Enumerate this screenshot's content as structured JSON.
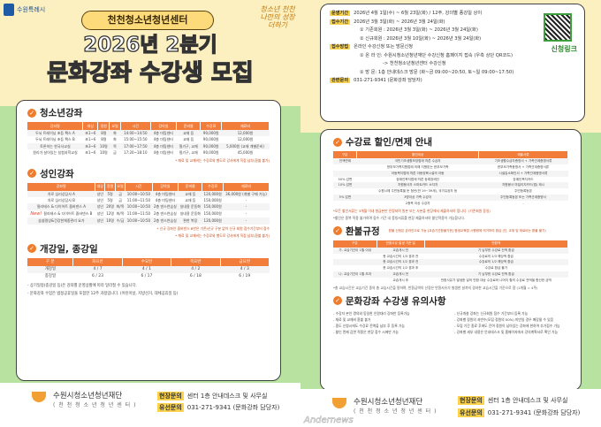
{
  "header": {
    "city_logo": "수원특례시",
    "center_badge": "천천청소년청년센터",
    "title_line1": "2026년 2분기",
    "title_line2": "문화강좌 수강생 모집",
    "slogan": "청소년 천천 나만의 성장 더하기"
  },
  "youth": {
    "title": "청소년강좌",
    "columns": [
      "강좌명",
      "대상",
      "정원",
      "요일",
      "시간",
      "강의실",
      "준비물",
      "수강료",
      "재료비"
    ],
    "rows": [
      [
        "두뇌 트레이닝 초등 팩스 A",
        "초1~6",
        "8명",
        "화",
        "14:00~14:50",
        "4층 미팅센터",
        "교재 등",
        "90,000원",
        "12,000원"
      ],
      [
        "두뇌 트레이닝 초등 팩스 B",
        "초1~6",
        "8명",
        "화",
        "15:00~15:50",
        "4층 미팅센터",
        "교재 등",
        "90,000원",
        "12,000원"
      ],
      [
        "토론하는 한국사교실",
        "초3~6",
        "10명",
        "목",
        "17:00~17:50",
        "4층 미팅센터",
        "필기구, 교재",
        "90,000원",
        "5,000원 (교재 개별준비)"
      ],
      [
        "원리가 살아있는 실험과학교실",
        "초1~6",
        "10명",
        "금",
        "17:20~18:10",
        "4층 미팅센터",
        "필기구, 교재",
        "90,000원",
        "45,000원"
      ]
    ],
    "note": "* 재료 및 교재비는 수강료와 별도로 강사에게 직접 납부(환불 불가)"
  },
  "adult": {
    "title": "성인강좌",
    "columns": [
      "강좌명",
      "대상",
      "정원",
      "요일",
      "시간",
      "강의실",
      "준비물",
      "수강료",
      "재료비"
    ],
    "rows": [
      [
        "차로 심리상담사 A",
        "성인",
        "5명",
        "금",
        "10:00~10:50",
        "4층 미팅센터",
        "교재 등",
        "120,000원",
        "36,000원 (개별 구매 가능)"
      ],
      [
        "차로 심리상담사 B",
        "성인",
        "5명",
        "금",
        "11:00~11:50",
        "4층 미팅센터",
        "교재 등",
        "150,000원",
        "-"
      ],
      [
        "필라테스 & 다이어트 줌바댄스 A",
        "성인",
        "20명",
        "화/목",
        "10:00~10:50",
        "2층 댄스연습실",
        "실내용 운동화",
        "150,000원",
        "-"
      ],
      [
        "필라테스 & 다이어트 줌바댄스 B",
        "성인",
        "12명",
        "화/목",
        "11:00~11:50",
        "2층 댄스연습실",
        "실내용 운동화",
        "150,000원",
        "-"
      ],
      [
        "숨쉼명상&건강한체중관리 요가",
        "성인",
        "10명",
        "수/금",
        "10:00~10:50",
        "2층 댄스연습실",
        "편한 복장",
        "120,000원",
        "-"
      ]
    ],
    "new_badge": "New!",
    "notes": [
      "* 신규 강좌인 줌바댄스 B반은 기존/신규 구분 없이 신규 회원 접수기간부터 접수",
      "* 재료 및 교재비는 수강료와 별도로 강사에게 직접 납부(환불 불가)"
    ]
  },
  "schedule": {
    "title": "개강일, 종강일",
    "columns": [
      "구 분",
      "화요반",
      "수요반",
      "목요반",
      "금요반"
    ],
    "rows": [
      [
        "개강일",
        "4 / 7",
        "4 / 1",
        "4 / 2",
        "4 / 3"
      ],
      [
        "종강일",
        "6 / 23",
        "6 / 17",
        "6 / 18",
        "6 / 19"
      ]
    ],
    "bullets": [
      "- 상기일정(종강일 등)은 강좌별 운영상황에 따라 달라질 수 있습니다.",
      "- 문화강좌 수업은 법정공휴일을 포함한 12주 과정입니다. (어린이날, 지방선거, 대체공휴일 등)"
    ]
  },
  "footer": {
    "org": "수원시청소년청년재단",
    "org_sub": "( 천 천 청 소 년 청 년 센 터 )",
    "visit_label": "현장문의",
    "visit": "센터 1층 안내데스크 및 사무실",
    "phone_label": "유선문의",
    "phone": "031-271-9341 (문화강좌 담당자)",
    "watermark": "Andernews"
  },
  "info": {
    "period_label": "운영기간",
    "period": "2026년 4월 1일(수) ~ 6월 23일(화) / 12주, 강의별 종강일 상이",
    "reg_label": "접수기간",
    "reg": "2026년 3월 3일(화) ~ 2026년 3월 24일(화)",
    "reg1": "① 기존회원 : 2026년 3월 3일(화) ~ 2026년 3월 24일(화)",
    "reg2": "② 신규회원 : 2026년 3월 10일(화) ~ 2026년 3월 24일(화)",
    "method_label": "접수방법",
    "method": "온라인 수강신청 또는 방문신청",
    "m1": "① 온 라 인: 수원시청소년청년재단 수강신청 홈페이지 접속 (우측 상단 QR코드)",
    "m1b": "-> 천천청소년청년센터 수강신청",
    "m2": "② 방     문: 1층 안내데스크 방문 (화~금 09:00~20:50, 토~일 09:00~17:50)",
    "contact_label": "관련문의",
    "contact": "031-271-9341 (문화강좌 담당자)",
    "qr_label": "신청링크"
  },
  "discount": {
    "title": "수강료 할인/면제 안내",
    "columns": [
      "구분",
      "할인대상",
      "제출서류"
    ],
    "rows": [
      [
        "전액면제",
        "국민기초생활보장법에 따른 수급자",
        "기초생활수급자증명서 + 가족관계증명서류"
      ],
      [
        "",
        "한부모가족지원법에 의해 지원받는 한부모가족",
        "한부모가족증명서 + 가족관계증명서류"
      ],
      [
        "",
        "아동복지법에 따른 아동양육시설의 아동",
        "시설입소확인서 + 가족관계증명서류"
      ],
      [
        "50% 감면",
        "장애인복지법에 따른 등록장애인",
        "장애인복지카드"
      ],
      [
        "10% 감면",
        "자원봉사자 스마트카드 소지자",
        "자원봉사 마일리지카드(앱) 제시"
      ],
      [
        "",
        "수원시에 주민등록을 둔 청년(만 19~39세), 국가유공자 등",
        "주민등록등본"
      ],
      [
        "5% 감면",
        "3명이상 가족 수강자",
        "주민등록등본 또는 가족관계증명서"
      ],
      [
        "",
        "2종목 이상 수강자",
        "-"
      ]
    ],
    "notes": [
      "*모든 할인서류는 3개월 이내 발급본만 인정되며 원본 또는 사본을 현장에서 제출하셔야 합니다. (기존회원 동일)",
      "*할인은 중복 적용 불가하며 접수 기간 내 증빙서류를 현장 제출하셔야 할인적용이 가능합니다."
    ]
  },
  "refund": {
    "title": "환불규정",
    "header_note": "환불 신청은 온라인으로 가능 [교습기관환불기준] 평생교육법 시행령에 의거하여 환급 (단, 교재 및 재료비는 환불 불가)",
    "columns": [
      "구분",
      "반환사유 발생 기준 일",
      "반환액"
    ],
    "rows": [
      [
        "가. 교습기간이 1월 이내",
        "교습개시 전",
        "기 납부한 수강료 전액 환급"
      ],
      [
        "",
        "총 교습시간의 1/3 경과 전",
        "수강료의 2/3 해당액 환급"
      ],
      [
        "",
        "총 교습시간의 1/2 경과 전",
        "수강료의 1/2 해당액 환급"
      ],
      [
        "",
        "총 교습시간의 1/2 경과 후",
        "수강료 환급 불가"
      ],
      [
        "나. 교습기간이 1월 초과",
        "교습개시 전",
        "기 납부한 수강료 전액 환급"
      ],
      [
        "",
        "교습개시 후",
        "반환사유가 발생한 달의 반환 대상 수강료와 나머지 월의 수강료 전액을 합산한 금액"
      ]
    ],
    "note": "*총 교습시간은 교습기간 중의 총 교습시간을 말하며, 반환금액의 산정은 반환사유가 발생한 날까지 경과한 교습시간을 기준으로 함 (1개월 = 4주)"
  },
  "cautions": {
    "title": "문화강좌 수강생 유의사항",
    "left": [
      "- 수강자 본인 명의와 동일한 인원대리 강좌만 등록가능",
      "- 재료 및 교재비 환불 불가",
      "- 중도 신청시에도 수강료 전액을 납부 후 등록 가능",
      "- 할인 면제 감면 적용은 현장 접수 시에만 가능"
    ],
    "right": [
      "- 신규개설 강좌는 신규회원 접수 기간부터 등록 가능",
      "- 강좌별 정원의 과반수(모집 정원의 50%) 미만일 경우 폐강될 수 있음",
      "- 모집 기간 종료 후에도 잔여 정원이 남아있는 강좌에 한하여 추가접수 가능",
      "- 강좌별 세부 내용은 안내데스크 및 홈페이지에서 강의계획서로 확인 가능"
    ]
  }
}
